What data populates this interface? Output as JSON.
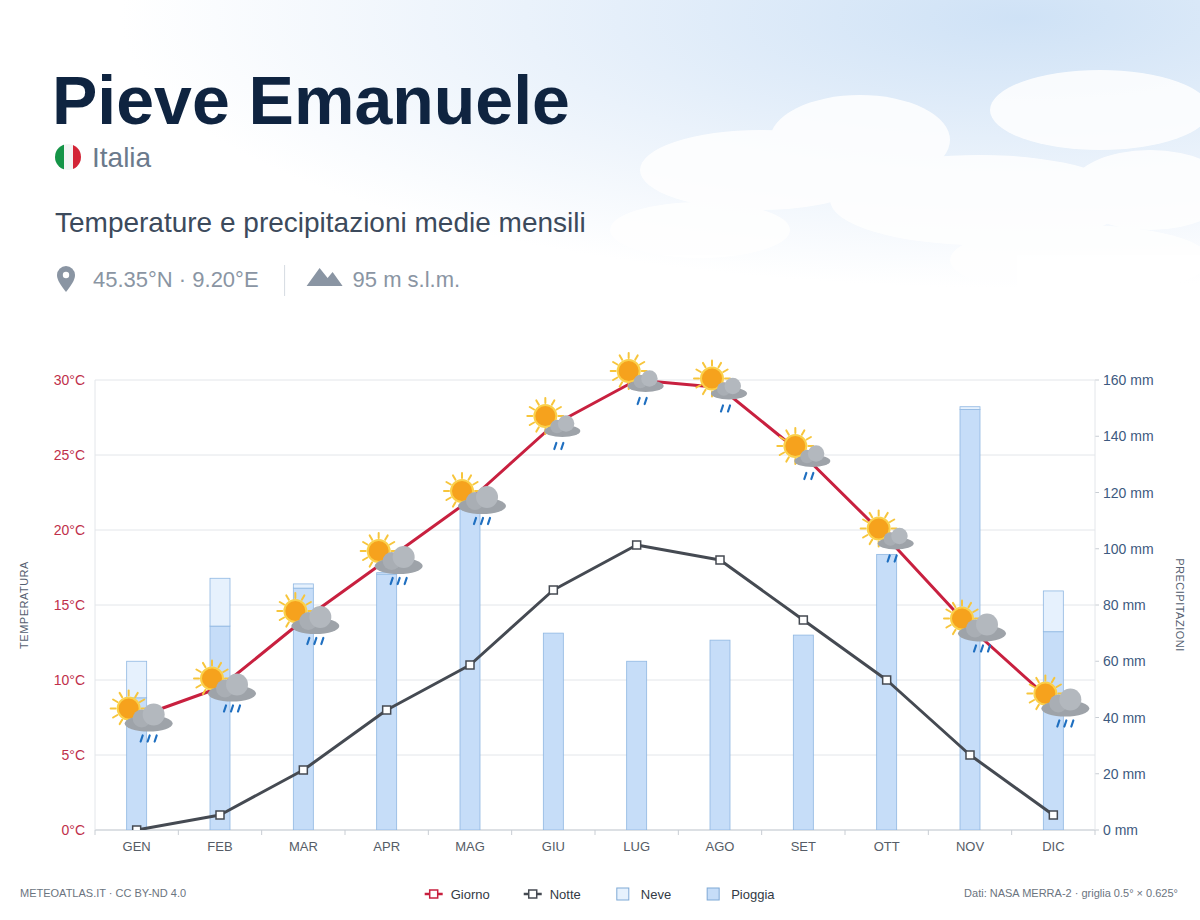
{
  "header": {
    "title": "Pieve Emanuele",
    "country": "Italia",
    "subtitle": "Temperature e precipitazioni medie mensili",
    "coordinates": "45.35°N · 9.20°E",
    "elevation": "95 m s.l.m."
  },
  "chart_data": {
    "type": "bar",
    "stacked": true,
    "grid": true,
    "legend": "bottom",
    "y_label": "TEMPERATURA",
    "y2_label": "PRECIPITAZIONI",
    "categories": [
      "GEN",
      "FEB",
      "MAR",
      "APR",
      "MAG",
      "GIU",
      "LUG",
      "AGO",
      "SET",
      "OTT",
      "NOV",
      "DIC"
    ],
    "series": [
      {
        "name": "Giorno",
        "type": "line",
        "marker": "square",
        "color": "#c8203f",
        "values": [
          7.5,
          9.5,
          14,
          18,
          22,
          27,
          30,
          29.5,
          25,
          19.5,
          13.5,
          8.5
        ]
      },
      {
        "name": "Notte",
        "type": "line",
        "marker": "square",
        "color": "#454a52",
        "values": [
          0,
          1,
          4,
          8,
          11,
          16,
          19,
          18,
          14,
          10,
          5,
          1
        ]
      },
      {
        "name": "Neve",
        "type": "bar",
        "axis": "y2",
        "color": "#e6f1fd",
        "values": [
          13,
          17,
          1.5,
          0.5,
          0,
          0,
          0,
          0,
          0,
          0,
          1,
          14.5
        ]
      },
      {
        "name": "Pioggia",
        "type": "bar",
        "axis": "y2",
        "color": "#c6ddf8",
        "values": [
          47,
          72.5,
          86,
          91,
          114,
          70,
          60,
          67.5,
          69.3,
          98,
          149.5,
          70.5
        ]
      }
    ],
    "ylim": [
      0,
      30
    ],
    "yticks": [
      {
        "value": 0,
        "label": "0°C"
      },
      {
        "value": 5,
        "label": "5°C"
      },
      {
        "value": 10,
        "label": "10°C"
      },
      {
        "value": 15,
        "label": "15°C"
      },
      {
        "value": 20,
        "label": "20°C"
      },
      {
        "value": 25,
        "label": "25°C"
      },
      {
        "value": 30,
        "label": "30°C"
      }
    ],
    "y2lim": [
      0,
      160
    ],
    "y2ticks": [
      {
        "value": 0,
        "label": "0 mm"
      },
      {
        "value": 20,
        "label": "20 mm"
      },
      {
        "value": 40,
        "label": "40 mm"
      },
      {
        "value": 60,
        "label": "60 mm"
      },
      {
        "value": 80,
        "label": "80 mm"
      },
      {
        "value": 100,
        "label": "100 mm"
      },
      {
        "value": 120,
        "label": "120 mm"
      },
      {
        "value": 140,
        "label": "140 mm"
      },
      {
        "value": 160,
        "label": "160 mm"
      }
    ]
  },
  "footer": {
    "source": "METEOATLAS.IT · CC BY-ND 4.0",
    "credits": "Dati: NASA MERRA-2 · griglia 0.5° × 0.625°"
  }
}
